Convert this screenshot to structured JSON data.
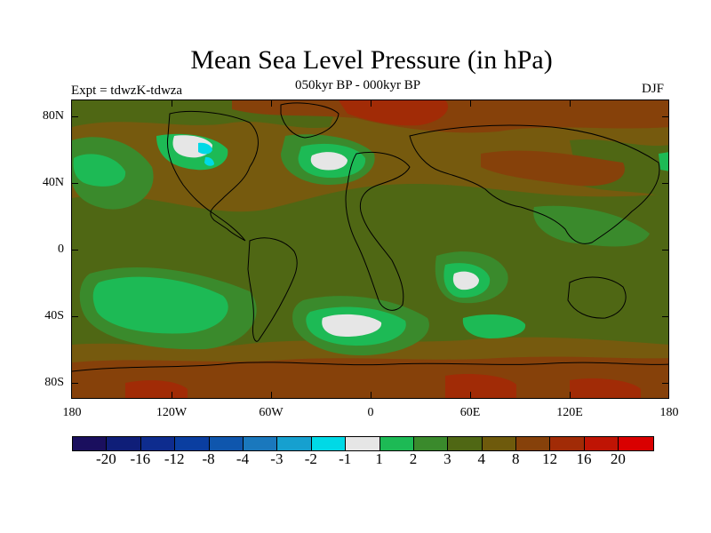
{
  "title": "Mean Sea Level Pressure (in hPa)",
  "subtitle": "050kyr BP - 000kyr BP",
  "experiment_label": "Expt = tdwzK-tdwza",
  "season": "DJF",
  "axes": {
    "y_ticks": [
      "80N",
      "40N",
      "0",
      "40S",
      "80S"
    ],
    "x_ticks": [
      "180",
      "120W",
      "60W",
      "0",
      "60E",
      "120E",
      "180"
    ]
  },
  "colorbar": {
    "labels": [
      "-20",
      "-16",
      "-12",
      "-8",
      "-4",
      "-3",
      "-2",
      "-1",
      "1",
      "2",
      "3",
      "4",
      "8",
      "12",
      "16",
      "20"
    ],
    "colors": [
      "#1a0f5e",
      "#0f1e78",
      "#0e2c8e",
      "#0a3ea0",
      "#0f56ad",
      "#1a78bd",
      "#16a0cf",
      "#00d9e6",
      "#e6e6e6",
      "#1dba55",
      "#3a8a2c",
      "#4f6714",
      "#6e5a0c",
      "#86410a",
      "#a12b06",
      "#bf1404",
      "#d90000"
    ]
  },
  "field_colors": {
    "background": "#765a0e",
    "olive": "#4f6714",
    "dark_green": "#3a8a2c",
    "green": "#1dba55",
    "white": "#e6e6e6",
    "cyan": "#00d9e6",
    "orange_brown": "#86410a",
    "red": "#a12b06",
    "coast": "#000000"
  }
}
